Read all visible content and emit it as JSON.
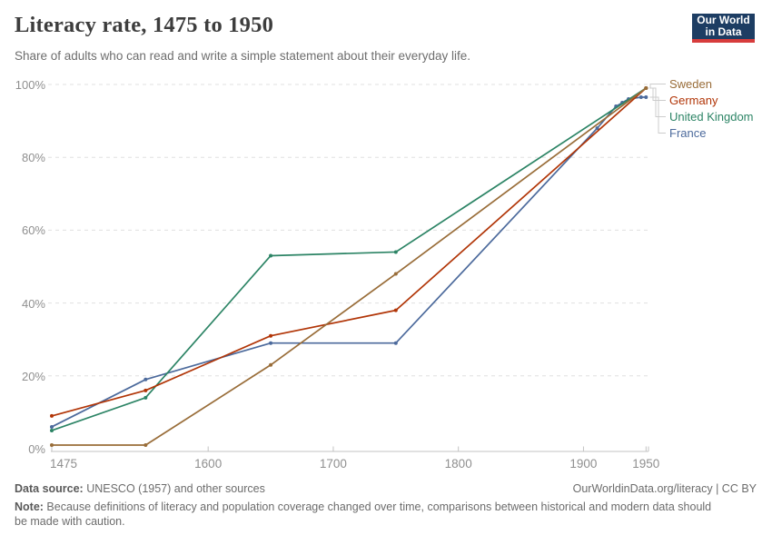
{
  "header": {
    "title": "Literacy rate, 1475 to 1950",
    "subtitle": "Share of adults who can read and write a simple statement about their everyday life.",
    "logo": {
      "line1": "Our World",
      "line2": "in Data",
      "bg_color": "#1D3D63",
      "accent_color": "#D73C3C"
    }
  },
  "chart_data": {
    "type": "line",
    "title": "Literacy rate, 1475 to 1950",
    "xlabel": "",
    "ylabel": "",
    "xlim": [
      1475,
      1950
    ],
    "ylim": [
      0,
      100
    ],
    "x_ticks": [
      1475,
      1600,
      1700,
      1800,
      1900,
      1950
    ],
    "y_ticks": [
      0,
      20,
      40,
      60,
      80,
      100
    ],
    "y_tick_labels": [
      "0%",
      "20%",
      "40%",
      "60%",
      "80%",
      "100%"
    ],
    "grid": "horizontal dashed",
    "legend_position": "right of line ends, connected with gray leader lines",
    "series": [
      {
        "name": "Sweden",
        "color": "#996D39",
        "points": [
          [
            1475,
            1
          ],
          [
            1550,
            1
          ],
          [
            1650,
            23
          ],
          [
            1750,
            48
          ],
          [
            1950,
            99
          ]
        ]
      },
      {
        "name": "Germany",
        "color": "#B13507",
        "points": [
          [
            1475,
            9
          ],
          [
            1550,
            16
          ],
          [
            1650,
            31
          ],
          [
            1750,
            38
          ],
          [
            1950,
            99
          ]
        ]
      },
      {
        "name": "United Kingdom",
        "color": "#2C8465",
        "points": [
          [
            1475,
            5
          ],
          [
            1550,
            14
          ],
          [
            1650,
            53
          ],
          [
            1750,
            54
          ],
          [
            1950,
            99
          ]
        ]
      },
      {
        "name": "France",
        "color": "#4C6A9C",
        "points": [
          [
            1475,
            6
          ],
          [
            1550,
            19
          ],
          [
            1650,
            29
          ],
          [
            1750,
            29
          ],
          [
            1911,
            88
          ],
          [
            1926,
            94
          ],
          [
            1931,
            95
          ],
          [
            1936,
            96
          ],
          [
            1946,
            96.5
          ],
          [
            1950,
            96.5
          ]
        ]
      }
    ]
  },
  "footer": {
    "source_label": "Data source:",
    "source_text": " UNESCO (1957) and other sources",
    "credit": "OurWorldinData.org/literacy | CC BY",
    "note_label": "Note:",
    "note_text": " Because definitions of literacy and population coverage changed over time, comparisons between historical and modern data should be made with caution."
  }
}
